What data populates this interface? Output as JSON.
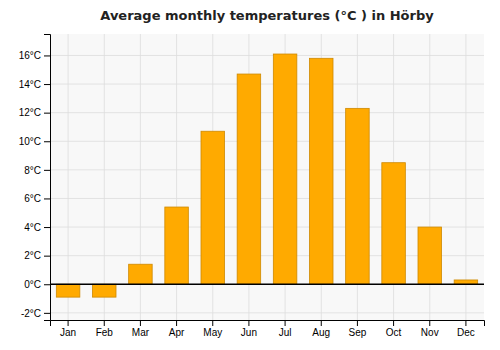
{
  "chart_data": {
    "type": "bar",
    "title": "Average monthly temperatures (°C ) in Hörby",
    "categories": [
      "Jan",
      "Feb",
      "Mar",
      "Apr",
      "May",
      "Jun",
      "Jul",
      "Aug",
      "Sep",
      "Oct",
      "Nov",
      "Dec"
    ],
    "values": [
      -0.9,
      -0.9,
      1.4,
      5.4,
      10.7,
      14.7,
      16.1,
      15.8,
      12.3,
      8.5,
      4.0,
      0.3
    ],
    "color": "#FFAA00",
    "ylim": [
      -2.5,
      17.5
    ],
    "yticks": [
      {
        "value": -2,
        "label": "-2°C"
      },
      {
        "value": 0,
        "label": "0°C"
      },
      {
        "value": 2,
        "label": "2°C"
      },
      {
        "value": 4,
        "label": "4°C"
      },
      {
        "value": 6,
        "label": "6°C"
      },
      {
        "value": 8,
        "label": "8°C"
      },
      {
        "value": 10,
        "label": "10°C"
      },
      {
        "value": 12,
        "label": "12°C"
      },
      {
        "value": 14,
        "label": "14°C"
      },
      {
        "value": 16,
        "label": "16°C"
      }
    ],
    "grid": true
  }
}
